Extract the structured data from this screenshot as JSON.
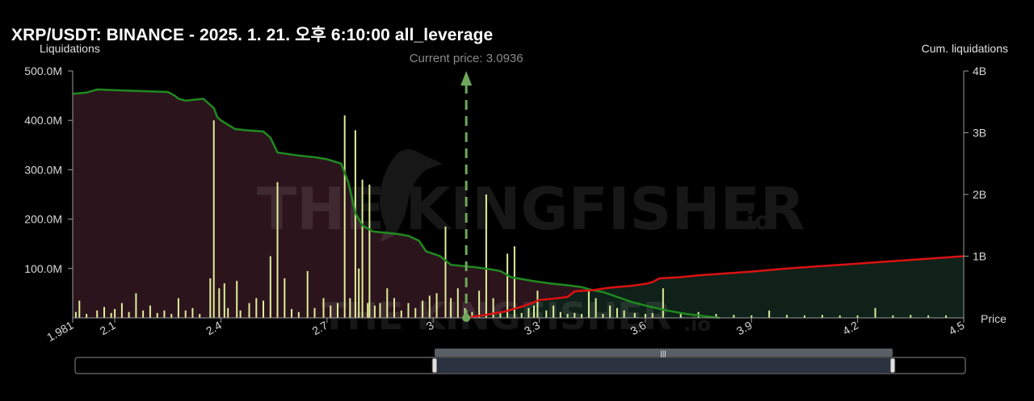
{
  "header": {
    "title": "XRP/USDT: BINANCE - 2025. 1. 21. 오후 6:10:00 all_leverage"
  },
  "axes": {
    "left_label": "Liquidations",
    "right_label": "Cum. liquidations",
    "x_label": "Price"
  },
  "current_price": {
    "label": "Current price: 3.0936",
    "value": 3.0936
  },
  "watermark": {
    "brand": "THE KINGFISHER",
    "suffix": ".io"
  },
  "colors": {
    "background": "#000000",
    "short_fill": "#2c141d",
    "long_fill": "#0f2119",
    "short_line": "#1f8a1f",
    "long_line": "#dd1111",
    "bars": "#dfee9a",
    "current_price_line": "#6ea75a"
  },
  "chart_data": {
    "type": "bar",
    "x_ticks": [
      1.981,
      2.1,
      2.4,
      2.7,
      3,
      3.3,
      3.6,
      3.9,
      4.2,
      4.5
    ],
    "x_range": [
      1.981,
      4.5
    ],
    "y_left": {
      "label": "Liquidations",
      "ticks": [
        "100.0M",
        "200.0M",
        "300.0M",
        "400.0M",
        "500.0M"
      ],
      "range": [
        0,
        500
      ]
    },
    "y_right": {
      "label": "Cum. liquidations",
      "ticks": [
        "1B",
        "2B",
        "3B",
        "4B"
      ],
      "range": [
        0,
        4
      ]
    },
    "bars_millions": [
      [
        1.99,
        12
      ],
      [
        2.0,
        35
      ],
      [
        2.02,
        8
      ],
      [
        2.05,
        15
      ],
      [
        2.07,
        22
      ],
      [
        2.09,
        10
      ],
      [
        2.1,
        18
      ],
      [
        2.12,
        30
      ],
      [
        2.14,
        12
      ],
      [
        2.16,
        50
      ],
      [
        2.18,
        15
      ],
      [
        2.2,
        25
      ],
      [
        2.22,
        10
      ],
      [
        2.24,
        15
      ],
      [
        2.26,
        8
      ],
      [
        2.28,
        40
      ],
      [
        2.3,
        15
      ],
      [
        2.32,
        20
      ],
      [
        2.34,
        8
      ],
      [
        2.37,
        80
      ],
      [
        2.38,
        400
      ],
      [
        2.395,
        60
      ],
      [
        2.41,
        70
      ],
      [
        2.42,
        20
      ],
      [
        2.445,
        75
      ],
      [
        2.455,
        15
      ],
      [
        2.48,
        30
      ],
      [
        2.5,
        40
      ],
      [
        2.52,
        35
      ],
      [
        2.54,
        125
      ],
      [
        2.56,
        275
      ],
      [
        2.58,
        80
      ],
      [
        2.6,
        18
      ],
      [
        2.62,
        12
      ],
      [
        2.645,
        95
      ],
      [
        2.665,
        20
      ],
      [
        2.69,
        40
      ],
      [
        2.71,
        25
      ],
      [
        2.73,
        30
      ],
      [
        2.75,
        410
      ],
      [
        2.765,
        40
      ],
      [
        2.78,
        380
      ],
      [
        2.79,
        100
      ],
      [
        2.8,
        280
      ],
      [
        2.815,
        30
      ],
      [
        2.82,
        270
      ],
      [
        2.835,
        25
      ],
      [
        2.85,
        30
      ],
      [
        2.87,
        60
      ],
      [
        2.89,
        40
      ],
      [
        2.91,
        15
      ],
      [
        2.93,
        30
      ],
      [
        2.95,
        20
      ],
      [
        2.97,
        35
      ],
      [
        2.99,
        45
      ],
      [
        3.01,
        50
      ],
      [
        3.035,
        185
      ],
      [
        3.05,
        40
      ],
      [
        3.07,
        60
      ],
      [
        3.09,
        20
      ],
      [
        3.11,
        12
      ],
      [
        3.13,
        55
      ],
      [
        3.15,
        250
      ],
      [
        3.17,
        40
      ],
      [
        3.19,
        12
      ],
      [
        3.21,
        130
      ],
      [
        3.23,
        145
      ],
      [
        3.25,
        10
      ],
      [
        3.27,
        20
      ],
      [
        3.285,
        25
      ],
      [
        3.295,
        55
      ],
      [
        3.32,
        15
      ],
      [
        3.34,
        25
      ],
      [
        3.36,
        12
      ],
      [
        3.38,
        8
      ],
      [
        3.4,
        10
      ],
      [
        3.42,
        8
      ],
      [
        3.44,
        55
      ],
      [
        3.46,
        40
      ],
      [
        3.48,
        8
      ],
      [
        3.5,
        25
      ],
      [
        3.52,
        20
      ],
      [
        3.54,
        15
      ],
      [
        3.57,
        10
      ],
      [
        3.6,
        8
      ],
      [
        3.62,
        10
      ],
      [
        3.65,
        60
      ],
      [
        3.7,
        8
      ],
      [
        3.75,
        12
      ],
      [
        3.8,
        8
      ],
      [
        3.85,
        6
      ],
      [
        3.9,
        5
      ],
      [
        3.95,
        15
      ],
      [
        4.0,
        6
      ],
      [
        4.05,
        5
      ],
      [
        4.1,
        6
      ],
      [
        4.15,
        5
      ],
      [
        4.2,
        5
      ],
      [
        4.25,
        20
      ],
      [
        4.3,
        5
      ],
      [
        4.35,
        6
      ],
      [
        4.4,
        5
      ],
      [
        4.45,
        5
      ]
    ],
    "short_cumulative_B": [
      [
        1.981,
        3.63
      ],
      [
        2.02,
        3.65
      ],
      [
        2.05,
        3.7
      ],
      [
        2.1,
        3.69
      ],
      [
        2.15,
        3.68
      ],
      [
        2.2,
        3.67
      ],
      [
        2.25,
        3.66
      ],
      [
        2.26,
        3.63
      ],
      [
        2.27,
        3.6
      ],
      [
        2.28,
        3.55
      ],
      [
        2.3,
        3.52
      ],
      [
        2.35,
        3.55
      ],
      [
        2.36,
        3.5
      ],
      [
        2.38,
        3.4
      ],
      [
        2.39,
        3.25
      ],
      [
        2.4,
        3.2
      ],
      [
        2.42,
        3.13
      ],
      [
        2.44,
        3.06
      ],
      [
        2.47,
        3.04
      ],
      [
        2.52,
        3.02
      ],
      [
        2.54,
        2.92
      ],
      [
        2.56,
        2.68
      ],
      [
        2.62,
        2.63
      ],
      [
        2.67,
        2.6
      ],
      [
        2.7,
        2.57
      ],
      [
        2.74,
        2.5
      ],
      [
        2.76,
        2.2
      ],
      [
        2.78,
        1.7
      ],
      [
        2.8,
        1.5
      ],
      [
        2.83,
        1.4
      ],
      [
        2.9,
        1.36
      ],
      [
        2.93,
        1.33
      ],
      [
        2.96,
        1.25
      ],
      [
        2.98,
        1.08
      ],
      [
        3.02,
        1.0
      ],
      [
        3.05,
        0.86
      ],
      [
        3.12,
        0.82
      ],
      [
        3.16,
        0.79
      ],
      [
        3.19,
        0.76
      ],
      [
        3.22,
        0.66
      ],
      [
        3.28,
        0.6
      ],
      [
        3.33,
        0.56
      ],
      [
        3.38,
        0.53
      ],
      [
        3.42,
        0.5
      ],
      [
        3.45,
        0.45
      ],
      [
        3.48,
        0.42
      ],
      [
        3.52,
        0.34
      ],
      [
        3.56,
        0.26
      ],
      [
        3.6,
        0.2
      ],
      [
        3.66,
        0.12
      ],
      [
        3.72,
        0.06
      ],
      [
        3.78,
        0.02
      ],
      [
        3.81,
        0.0
      ]
    ],
    "long_cumulative_B": [
      [
        3.09,
        0.0
      ],
      [
        3.15,
        0.05
      ],
      [
        3.2,
        0.1
      ],
      [
        3.25,
        0.18
      ],
      [
        3.28,
        0.24
      ],
      [
        3.3,
        0.29
      ],
      [
        3.34,
        0.31
      ],
      [
        3.38,
        0.34
      ],
      [
        3.4,
        0.43
      ],
      [
        3.45,
        0.45
      ],
      [
        3.5,
        0.49
      ],
      [
        3.56,
        0.52
      ],
      [
        3.6,
        0.55
      ],
      [
        3.62,
        0.58
      ],
      [
        3.64,
        0.64
      ],
      [
        3.7,
        0.66
      ],
      [
        3.75,
        0.69
      ],
      [
        3.8,
        0.71
      ],
      [
        3.9,
        0.75
      ],
      [
        4.0,
        0.8
      ],
      [
        4.1,
        0.84
      ],
      [
        4.2,
        0.88
      ],
      [
        4.3,
        0.92
      ],
      [
        4.4,
        0.96
      ],
      [
        4.5,
        1.0
      ]
    ]
  }
}
